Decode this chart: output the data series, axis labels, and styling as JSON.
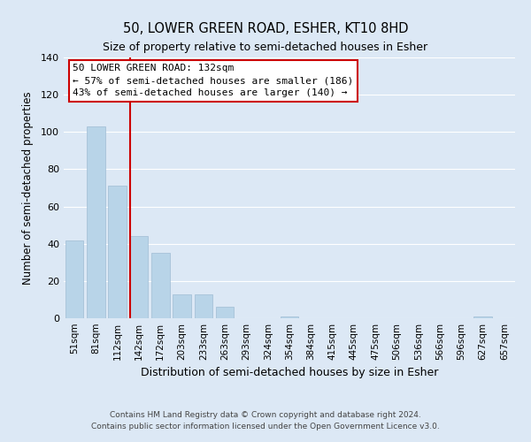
{
  "title": "50, LOWER GREEN ROAD, ESHER, KT10 8HD",
  "subtitle": "Size of property relative to semi-detached houses in Esher",
  "xlabel": "Distribution of semi-detached houses by size in Esher",
  "ylabel": "Number of semi-detached properties",
  "categories": [
    "51sqm",
    "81sqm",
    "112sqm",
    "142sqm",
    "172sqm",
    "203sqm",
    "233sqm",
    "263sqm",
    "293sqm",
    "324sqm",
    "354sqm",
    "384sqm",
    "415sqm",
    "445sqm",
    "475sqm",
    "506sqm",
    "536sqm",
    "566sqm",
    "596sqm",
    "627sqm",
    "657sqm"
  ],
  "values": [
    42,
    103,
    71,
    44,
    35,
    13,
    13,
    6,
    0,
    0,
    1,
    0,
    0,
    0,
    0,
    0,
    0,
    0,
    0,
    1,
    0
  ],
  "bar_color": "#b8d4e8",
  "highlight_line_color": "#cc0000",
  "annotation_title": "50 LOWER GREEN ROAD: 132sqm",
  "annotation_line1": "← 57% of semi-detached houses are smaller (186)",
  "annotation_line2": "43% of semi-detached houses are larger (140) →",
  "annotation_box_color": "#cc0000",
  "ylim": [
    0,
    140
  ],
  "yticks": [
    0,
    20,
    40,
    60,
    80,
    100,
    120,
    140
  ],
  "footer_line1": "Contains HM Land Registry data © Crown copyright and database right 2024.",
  "footer_line2": "Contains public sector information licensed under the Open Government Licence v3.0.",
  "plot_bg_color": "#dce8f5"
}
